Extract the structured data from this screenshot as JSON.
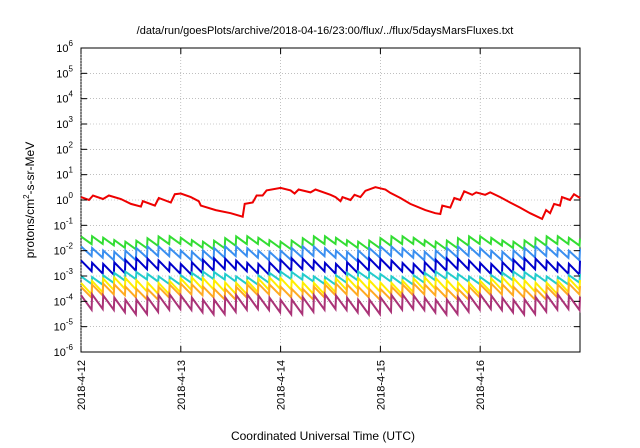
{
  "chart_data": {
    "type": "line",
    "title": "/data/run/goesPlots/archive/2018-04-16/23:00/flux/../flux/5daysMarsFluxes.txt",
    "xlabel": "Coordinated Universal Time (UTC)",
    "ylabel_parts": {
      "pre": "protons/cm",
      "sup": "2",
      "post": "-s-sr-MeV"
    },
    "y_scale": "log",
    "ylim_exponents": [
      -6,
      6
    ],
    "y_ticks": [
      {
        "base": "10",
        "exp": "6"
      },
      {
        "base": "10",
        "exp": "5"
      },
      {
        "base": "10",
        "exp": "4"
      },
      {
        "base": "10",
        "exp": "3"
      },
      {
        "base": "10",
        "exp": "2"
      },
      {
        "base": "10",
        "exp": "1"
      },
      {
        "base": "10",
        "exp": "0"
      },
      {
        "base": "10",
        "exp": "-1"
      },
      {
        "base": "10",
        "exp": "-2"
      },
      {
        "base": "10",
        "exp": "-3"
      },
      {
        "base": "10",
        "exp": "-4"
      },
      {
        "base": "10",
        "exp": "-5"
      },
      {
        "base": "10",
        "exp": "-6"
      }
    ],
    "x_range_days": [
      "2018-04-12",
      "2018-04-17"
    ],
    "x_ticks": [
      "2018-4-12",
      "2018-4-13",
      "2018-4-14",
      "2018-4-15",
      "2018-4-16"
    ],
    "grid": true,
    "sawtooth_cycles_per_day": 9,
    "series": [
      {
        "color": "#ee0000",
        "points": [
          [
            0.0,
            1.3
          ],
          [
            0.08,
            1.0
          ],
          [
            0.12,
            1.5
          ],
          [
            0.22,
            1.1
          ],
          [
            0.28,
            1.5
          ],
          [
            0.4,
            1.1
          ],
          [
            0.5,
            0.7
          ],
          [
            0.6,
            0.55
          ],
          [
            0.62,
            0.9
          ],
          [
            0.74,
            0.6
          ],
          [
            0.78,
            1.2
          ],
          [
            0.9,
            0.8
          ],
          [
            0.94,
            1.7
          ],
          [
            1.0,
            1.8
          ],
          [
            1.1,
            1.3
          ],
          [
            1.18,
            0.9
          ],
          [
            1.2,
            0.6
          ],
          [
            1.35,
            0.4
          ],
          [
            1.5,
            0.3
          ],
          [
            1.62,
            0.22
          ],
          [
            1.64,
            0.7
          ],
          [
            1.72,
            0.8
          ],
          [
            1.76,
            1.5
          ],
          [
            1.82,
            1.5
          ],
          [
            1.86,
            2.4
          ],
          [
            2.0,
            3.0
          ],
          [
            2.1,
            2.4
          ],
          [
            2.14,
            1.8
          ],
          [
            2.18,
            2.6
          ],
          [
            2.3,
            2.0
          ],
          [
            2.35,
            2.6
          ],
          [
            2.5,
            1.6
          ],
          [
            2.55,
            1.3
          ],
          [
            2.6,
            0.9
          ],
          [
            2.62,
            1.3
          ],
          [
            2.7,
            1.0
          ],
          [
            2.74,
            1.6
          ],
          [
            2.8,
            1.3
          ],
          [
            2.85,
            2.3
          ],
          [
            2.95,
            3.2
          ],
          [
            3.05,
            2.6
          ],
          [
            3.1,
            1.9
          ],
          [
            3.2,
            1.2
          ],
          [
            3.3,
            0.7
          ],
          [
            3.45,
            0.4
          ],
          [
            3.55,
            0.3
          ],
          [
            3.6,
            0.28
          ],
          [
            3.62,
            0.6
          ],
          [
            3.7,
            0.5
          ],
          [
            3.74,
            1.2
          ],
          [
            3.8,
            1.0
          ],
          [
            3.84,
            2.2
          ],
          [
            3.92,
            1.6
          ],
          [
            3.96,
            2.0
          ],
          [
            4.05,
            1.6
          ],
          [
            4.1,
            2.0
          ],
          [
            4.2,
            1.3
          ],
          [
            4.3,
            0.8
          ],
          [
            4.4,
            0.5
          ],
          [
            4.5,
            0.3
          ],
          [
            4.62,
            0.18
          ],
          [
            4.66,
            0.4
          ],
          [
            4.7,
            0.3
          ],
          [
            4.74,
            0.7
          ],
          [
            4.8,
            0.6
          ],
          [
            4.82,
            1.3
          ],
          [
            4.9,
            1.0
          ],
          [
            4.94,
            1.7
          ],
          [
            5.0,
            1.2
          ]
        ]
      },
      {
        "color": "#33dd33",
        "high": 0.03,
        "low": 0.015
      },
      {
        "color": "#3a8ff0",
        "high": 0.012,
        "low": 0.005
      },
      {
        "color": "#0000cc",
        "high": 0.004,
        "low": 0.0015
      },
      {
        "color": "#22cccc",
        "high": 0.0012,
        "low": 0.0006
      },
      {
        "color": "#ffee00",
        "high": 0.0007,
        "low": 0.00025
      },
      {
        "color": "#ffaa22",
        "high": 0.0004,
        "low": 0.00015
      },
      {
        "color": "#aa3377",
        "high": 0.00015,
        "low": 4e-05
      }
    ]
  }
}
